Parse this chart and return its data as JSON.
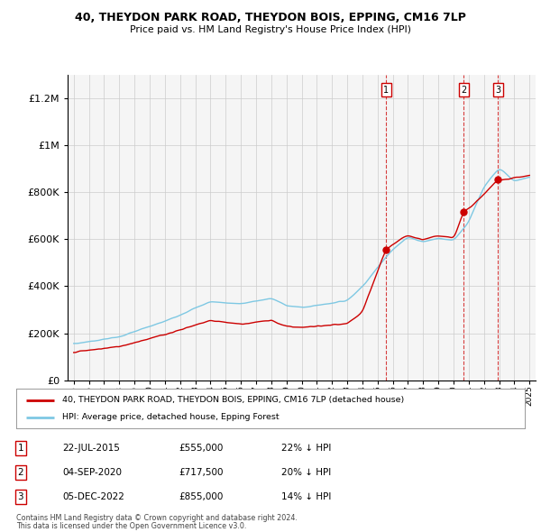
{
  "title": "40, THEYDON PARK ROAD, THEYDON BOIS, EPPING, CM16 7LP",
  "subtitle": "Price paid vs. HM Land Registry's House Price Index (HPI)",
  "legend_line1": "40, THEYDON PARK ROAD, THEYDON BOIS, EPPING, CM16 7LP (detached house)",
  "legend_line2": "HPI: Average price, detached house, Epping Forest",
  "footer1": "Contains HM Land Registry data © Crown copyright and database right 2024.",
  "footer2": "This data is licensed under the Open Government Licence v3.0.",
  "transactions": [
    {
      "num": "1",
      "date": "22-JUL-2015",
      "price": "£555,000",
      "hpi": "22% ↓ HPI",
      "year": 2015.55
    },
    {
      "num": "2",
      "date": "04-SEP-2020",
      "price": "£717,500",
      "hpi": "20% ↓ HPI",
      "year": 2020.67
    },
    {
      "num": "3",
      "date": "05-DEC-2022",
      "price": "£855,000",
      "hpi": "14% ↓ HPI",
      "year": 2022.92
    }
  ],
  "transaction_values": [
    555000,
    717500,
    855000
  ],
  "hpi_color": "#7ec8e3",
  "price_color": "#cc0000",
  "vline_color": "#cc0000",
  "background_chart": "#f5f5f5",
  "background_fig": "#ffffff",
  "ylim": [
    0,
    1300000
  ],
  "yticks": [
    0,
    200000,
    400000,
    600000,
    800000,
    1000000,
    1200000
  ],
  "xlim_start": 1994.6,
  "xlim_end": 2025.4
}
